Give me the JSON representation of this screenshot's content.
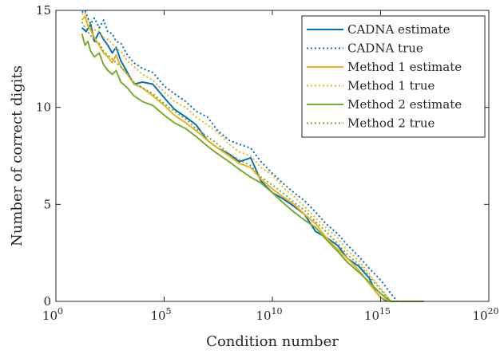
{
  "chart_data": {
    "type": "line",
    "title": "",
    "xlabel": "Condition number",
    "ylabel": "Number of correct digits",
    "xscale": "log",
    "xlim": [
      1,
      1e+20
    ],
    "ylim": [
      0,
      15
    ],
    "grid": false,
    "legend_position": "top-right",
    "x_ticks": [
      {
        "value": 1,
        "base": "10",
        "exp": "0"
      },
      {
        "value": 100000.0,
        "base": "10",
        "exp": "5"
      },
      {
        "value": 10000000000.0,
        "base": "10",
        "exp": "10"
      },
      {
        "value": 1000000000000000.0,
        "base": "10",
        "exp": "15"
      },
      {
        "value": 1e+20,
        "base": "10",
        "exp": "20"
      }
    ],
    "y_ticks": [
      {
        "value": 0,
        "label": "0"
      },
      {
        "value": 5,
        "label": "5"
      },
      {
        "value": 10,
        "label": "10"
      },
      {
        "value": 15,
        "label": "15"
      }
    ],
    "series": [
      {
        "name": "CADNA estimate",
        "color": "#0072BD",
        "style": "solid",
        "x": [
          16.0,
          25.0,
          40.0,
          60.0,
          100.0,
          160.0,
          250.0,
          400.0,
          600.0,
          1000.0,
          2000.0,
          4000.0,
          10000.0,
          30000.0,
          100000.0,
          300000.0,
          1000000.0,
          3000000.0,
          10000000.0,
          30000000.0,
          100000000.0,
          300000000.0,
          1000000000.0,
          3000000000.0,
          10000000000.0,
          30000000000.0,
          100000000000.0,
          300000000000.0,
          1000000000000.0,
          3000000000000.0,
          10000000000000.0,
          30000000000000.0,
          100000000000000.0,
          300000000000000.0,
          600000000000000.0,
          1000000000000000.0,
          2000000000000000.0
        ],
        "y": [
          14.1,
          13.9,
          14.3,
          13.4,
          13.9,
          13.5,
          13.2,
          12.8,
          13.1,
          12.4,
          11.8,
          11.2,
          11.3,
          11.2,
          10.5,
          9.9,
          9.5,
          9.1,
          8.3,
          7.9,
          7.6,
          7.2,
          7.4,
          6.2,
          5.6,
          5.3,
          4.9,
          4.5,
          3.6,
          3.3,
          2.9,
          2.2,
          1.8,
          1.2,
          0.5,
          0.2,
          0.0
        ]
      },
      {
        "name": "CADNA true",
        "color": "#0072BD",
        "style": "dotted",
        "x": [
          16.0,
          22.0,
          30.0,
          40.0,
          60.0,
          100.0,
          160.0,
          250.0,
          400.0,
          600.0,
          1000.0,
          2000.0,
          4000.0,
          10000.0,
          30000.0,
          100000.0,
          300000.0,
          1000000.0,
          3000000.0,
          10000000.0,
          30000000.0,
          100000000.0,
          300000000.0,
          1000000000.0,
          3000000000.0,
          10000000000.0,
          30000000000.0,
          100000000000.0,
          300000000000.0,
          1000000000000.0,
          3000000000000.0,
          10000000000000.0,
          30000000000000.0,
          100000000000000.0,
          300000000000000.0,
          1000000000000000.0,
          3000000000000000.0,
          6000000000000000.0
        ],
        "y": [
          14.9,
          15.0,
          14.6,
          14.3,
          14.6,
          14.1,
          14.5,
          13.9,
          13.8,
          13.4,
          13.3,
          12.7,
          12.3,
          12.0,
          11.8,
          11.1,
          10.7,
          10.3,
          9.8,
          9.5,
          8.8,
          8.3,
          8.1,
          7.9,
          7.2,
          6.6,
          6.1,
          5.6,
          5.2,
          4.6,
          4.0,
          3.5,
          2.9,
          2.3,
          1.7,
          1.1,
          0.4,
          0.0
        ]
      },
      {
        "name": "Method 1 estimate",
        "color": "#EDB120",
        "style": "solid",
        "x": [
          16.0,
          22.0,
          30.0,
          40.0,
          60.0,
          100.0,
          160.0,
          250.0,
          400.0,
          600.0,
          1000.0,
          2000.0,
          4000.0,
          10000.0,
          30000.0,
          100000.0,
          300000.0,
          1000000.0,
          3000000.0,
          10000000.0,
          30000000.0,
          100000000.0,
          300000000.0,
          1000000000.0,
          3000000000.0,
          10000000000.0,
          30000000000.0,
          100000000000.0,
          300000000000.0,
          1000000000000.0,
          3000000000000.0,
          10000000000000.0,
          30000000000000.0,
          100000000000000.0,
          300000000000000.0,
          1000000000000000.0,
          3000000000000000.0,
          1e+16
        ],
        "y": [
          14.5,
          14.7,
          14.2,
          14.0,
          13.6,
          13.2,
          12.8,
          12.6,
          12.3,
          12.7,
          12.1,
          11.7,
          11.2,
          11.0,
          10.6,
          10.1,
          9.6,
          9.2,
          8.8,
          8.3,
          7.9,
          7.5,
          7.1,
          6.9,
          6.3,
          5.8,
          5.4,
          5.0,
          4.5,
          4.0,
          3.3,
          2.7,
          2.2,
          1.6,
          0.9,
          0.2,
          0.0,
          0.0
        ]
      },
      {
        "name": "Method 1 true",
        "color": "#EDB120",
        "style": "dotted",
        "x": [
          16.0,
          22.0,
          30.0,
          40.0,
          60.0,
          100.0,
          160.0,
          250.0,
          400.0,
          600.0,
          1000.0,
          2000.0,
          4000.0,
          10000.0,
          30000.0,
          100000.0,
          300000.0,
          1000000.0,
          3000000.0,
          10000000.0,
          30000000.0,
          100000000.0,
          300000000.0,
          1000000000.0,
          3000000000.0,
          10000000000.0,
          30000000000.0,
          100000000000.0,
          300000000000.0,
          1000000000000.0,
          3000000000000.0,
          10000000000000.0,
          30000000000000.0,
          100000000000000.0,
          300000000000000.0,
          1000000000000000.0,
          3000000000000000.0
        ],
        "y": [
          14.8,
          14.9,
          14.4,
          14.2,
          14.0,
          13.9,
          13.6,
          13.5,
          13.3,
          13.0,
          12.9,
          12.4,
          12.1,
          11.7,
          11.4,
          10.8,
          10.3,
          10.0,
          9.5,
          9.1,
          8.7,
          8.1,
          7.7,
          7.5,
          6.9,
          6.5,
          5.9,
          5.4,
          4.9,
          4.3,
          3.8,
          3.3,
          2.6,
          2.1,
          1.4,
          0.7,
          0.0
        ]
      },
      {
        "name": "Method 2 estimate",
        "color": "#77AC30",
        "style": "solid",
        "x": [
          16.0,
          22.0,
          30.0,
          40.0,
          60.0,
          100.0,
          160.0,
          250.0,
          400.0,
          600.0,
          1000.0,
          2000.0,
          4000.0,
          10000.0,
          30000.0,
          100000.0,
          300000.0,
          1000000.0,
          3000000.0,
          10000000.0,
          30000000.0,
          100000000.0,
          300000000.0,
          1000000000.0,
          3000000000.0,
          10000000000.0,
          30000000000.0,
          100000000000.0,
          300000000000.0,
          1000000000000.0,
          3000000000000.0,
          10000000000000.0,
          30000000000000.0,
          100000000000000.0,
          300000000000000.0,
          1000000000000000.0,
          3000000000000000.0,
          1e+16,
          1e+17
        ],
        "y": [
          13.8,
          13.2,
          13.4,
          12.9,
          12.6,
          12.8,
          12.2,
          11.9,
          11.7,
          11.9,
          11.3,
          11.0,
          10.6,
          10.3,
          10.1,
          9.6,
          9.2,
          8.9,
          8.5,
          8.0,
          7.6,
          7.2,
          6.8,
          6.4,
          6.1,
          5.6,
          5.1,
          4.6,
          4.2,
          3.8,
          3.2,
          2.6,
          2.0,
          1.5,
          1.0,
          0.4,
          0.0,
          0.0,
          0.0
        ]
      },
      {
        "name": "Method 2 true",
        "color": "#77AC30",
        "style": "dotted",
        "x": [
          16.0,
          22.0,
          30.0,
          40.0,
          60.0,
          100.0,
          160.0,
          250.0,
          400.0,
          600.0,
          1000.0,
          2000.0,
          4000.0,
          10000.0,
          30000.0,
          100000.0,
          300000.0,
          1000000.0,
          3000000.0,
          10000000.0,
          30000000.0,
          100000000.0,
          300000000.0,
          1000000000.0,
          3000000000.0,
          10000000000.0,
          30000000000.0,
          100000000000.0,
          300000000000.0,
          1000000000000.0,
          3000000000000.0,
          10000000000000.0,
          30000000000000.0,
          100000000000000.0,
          300000000000000.0,
          1000000000000000.0,
          3000000000000000.0,
          1e+16,
          1e+17
        ],
        "y": [
          14.4,
          14.1,
          13.9,
          13.7,
          13.4,
          13.3,
          12.9,
          12.7,
          12.5,
          12.3,
          12.1,
          11.7,
          11.3,
          11.0,
          10.7,
          10.2,
          9.8,
          9.4,
          8.9,
          8.5,
          8.1,
          7.6,
          7.3,
          7.0,
          6.4,
          6.0,
          5.6,
          5.1,
          4.7,
          4.1,
          3.6,
          3.0,
          2.4,
          1.9,
          1.3,
          0.6,
          0.0,
          0.0,
          0.0
        ]
      }
    ]
  }
}
